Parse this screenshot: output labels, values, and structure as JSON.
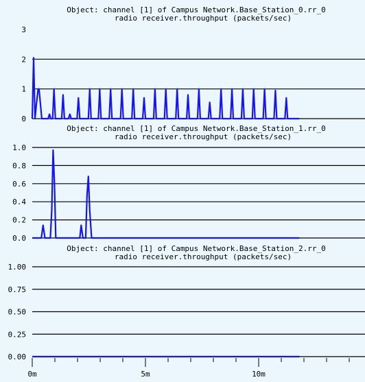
{
  "colors": {
    "background": "#ebf7fd",
    "series": "#1515f0",
    "gridline": "#000000"
  },
  "x_axis": {
    "ticks": [
      {
        "value": 0,
        "label": "0m"
      },
      {
        "value": 5,
        "label": "5m"
      },
      {
        "value": 10,
        "label": "10m"
      }
    ]
  },
  "chart_data": [
    {
      "type": "line",
      "title": "Object: channel [1] of Campus Network.Base_Station_0.rr_0",
      "subtitle": "radio receiver.throughput (packets/sec)",
      "xunits": "minutes",
      "xlim": [
        0,
        12
      ],
      "ylim": [
        0,
        3
      ],
      "grid": true,
      "yticks": [
        {
          "value": 0,
          "label": "0"
        },
        {
          "value": 1,
          "label": "1"
        },
        {
          "value": 2,
          "label": "2"
        },
        {
          "value": 3,
          "label": "3"
        }
      ],
      "x": [
        0,
        0.06,
        0.12,
        0.18,
        0.26,
        0.3,
        0.42,
        0.48,
        0.52,
        0.7,
        0.76,
        0.82,
        0.9,
        0.96,
        1.02,
        1.3,
        1.36,
        1.42,
        1.6,
        1.66,
        1.72,
        1.98,
        2.04,
        2.1,
        2.48,
        2.54,
        2.6,
        2.92,
        2.98,
        3.04,
        3.4,
        3.46,
        3.52,
        3.9,
        3.96,
        4.02,
        4.4,
        4.46,
        4.52,
        4.88,
        4.94,
        5,
        5.36,
        5.42,
        5.48,
        5.84,
        5.9,
        5.96,
        6.34,
        6.4,
        6.46,
        6.82,
        6.88,
        6.94,
        7.3,
        7.36,
        7.42,
        7.78,
        7.84,
        7.9,
        8.28,
        8.34,
        8.4,
        8.76,
        8.82,
        8.88,
        9.24,
        9.3,
        9.36,
        9.72,
        9.78,
        9.84,
        10.2,
        10.26,
        10.32,
        10.68,
        10.74,
        10.8,
        11.16,
        11.22,
        11.28,
        11.6,
        11.8
      ],
      "series": [
        {
          "values": [
            0,
            2.05,
            0,
            0.45,
            1,
            1,
            0,
            0,
            0,
            0,
            0.15,
            0,
            0,
            1,
            0,
            0,
            0.8,
            0,
            0,
            0.15,
            0,
            0,
            0.7,
            0,
            0,
            1,
            0,
            0,
            1,
            0,
            0,
            1,
            0,
            0,
            1,
            0,
            0,
            1,
            0,
            0,
            0.7,
            0,
            0,
            1,
            0,
            0,
            1,
            0,
            0,
            1,
            0,
            0,
            0.8,
            0,
            0,
            1,
            0,
            0,
            0.55,
            0,
            0,
            1,
            0,
            0,
            1,
            0,
            0,
            1,
            0,
            0,
            1,
            0,
            0,
            1,
            0,
            0,
            0.95,
            0,
            0,
            0.7,
            0,
            0,
            0
          ]
        }
      ]
    },
    {
      "type": "line",
      "title": "Object: channel [1] of Campus Network.Base_Station_1.rr_0",
      "subtitle": "radio receiver.throughput (packets/sec)",
      "xunits": "minutes",
      "xlim": [
        0,
        12
      ],
      "ylim": [
        0,
        1
      ],
      "grid": true,
      "yticks": [
        {
          "value": 0,
          "label": "0.0"
        },
        {
          "value": 0.2,
          "label": "0.2"
        },
        {
          "value": 0.4,
          "label": "0.4"
        },
        {
          "value": 0.6,
          "label": "0.6"
        },
        {
          "value": 0.8,
          "label": "0.8"
        },
        {
          "value": 1,
          "label": "1.0"
        }
      ],
      "x": [
        0,
        0.4,
        0.48,
        0.56,
        0.8,
        0.86,
        0.92,
        0.98,
        1.04,
        1.1,
        2.1,
        2.16,
        2.24,
        2.36,
        2.42,
        2.48,
        2.54,
        2.62,
        11.8
      ],
      "series": [
        {
          "values": [
            0,
            0,
            0.14,
            0,
            0,
            0.3,
            0.97,
            0.62,
            0,
            0,
            0,
            0.14,
            0,
            0,
            0.48,
            0.68,
            0.3,
            0,
            0
          ]
        }
      ]
    },
    {
      "type": "line",
      "title": "Object: channel [1] of Campus Network.Base_Station_2.rr_0",
      "subtitle": "radio receiver.throughput (packets/sec)",
      "xunits": "minutes",
      "xlim": [
        0,
        12
      ],
      "ylim": [
        0,
        1
      ],
      "grid": true,
      "yticks": [
        {
          "value": 0,
          "label": "0.00"
        },
        {
          "value": 0.25,
          "label": "0.25"
        },
        {
          "value": 0.5,
          "label": "0.50"
        },
        {
          "value": 0.75,
          "label": "0.75"
        },
        {
          "value": 1,
          "label": "1.00"
        }
      ],
      "x": [
        0,
        11.8
      ],
      "series": [
        {
          "values": [
            0,
            0
          ]
        }
      ]
    }
  ]
}
